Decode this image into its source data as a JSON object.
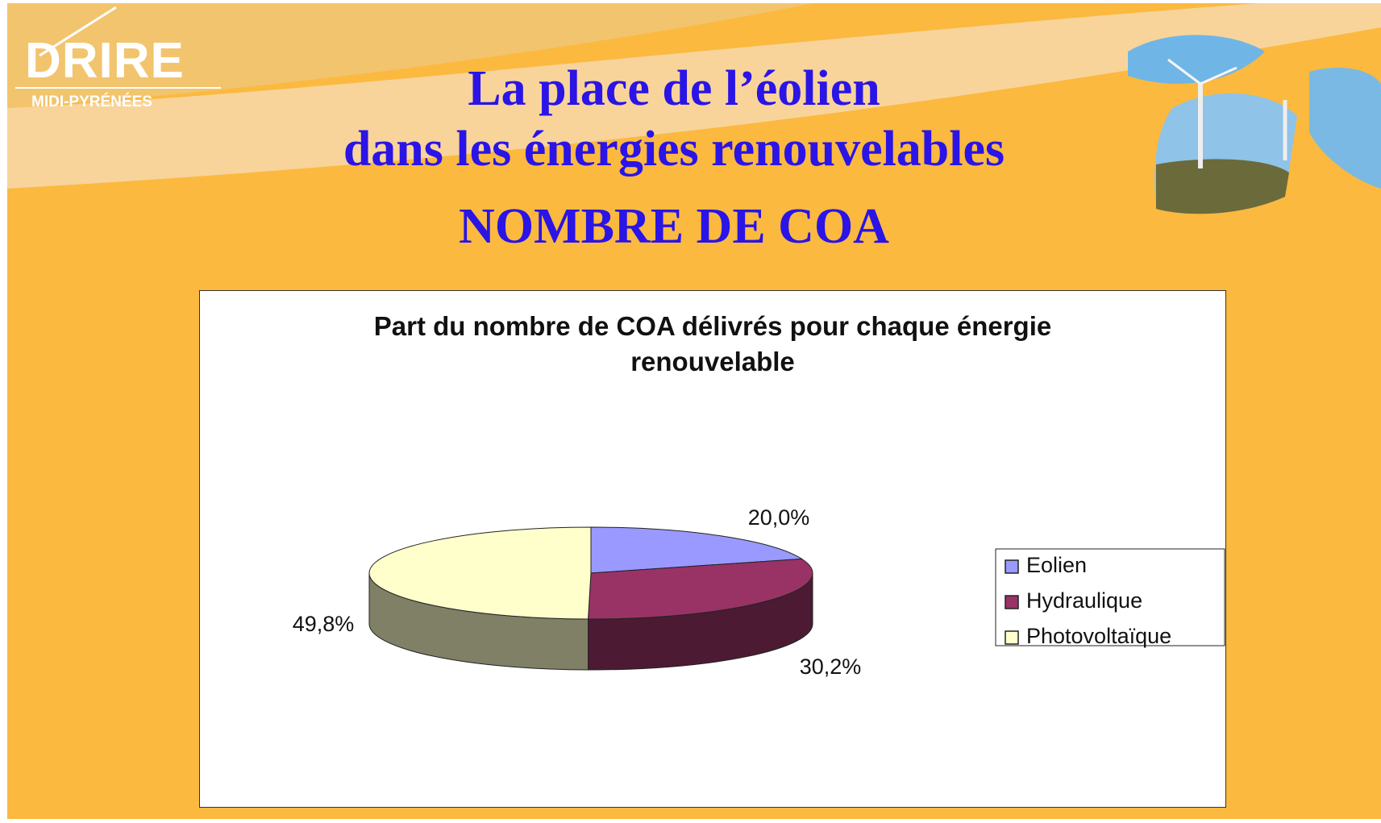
{
  "header": {
    "logo": "DRIRE",
    "logo_subtitle": "MIDI-PYRÉNÉES",
    "title_line1": "La place de l’éolien",
    "title_line2": "dans les énergies renouvelables",
    "subtitle": "NOMBRE DE COA"
  },
  "chart_data": {
    "type": "pie",
    "title": "Part du nombre de COA délivrés pour chaque énergie renouvelable",
    "categories": [
      "Eolien",
      "Hydraulique",
      "Photovoltaïque"
    ],
    "values": [
      20.0,
      30.2,
      49.8
    ],
    "value_labels": [
      "20,0%",
      "30,2%",
      "49,8%"
    ],
    "colors": [
      "#9999ff",
      "#993366",
      "#ffffcc"
    ],
    "legend": "right"
  }
}
